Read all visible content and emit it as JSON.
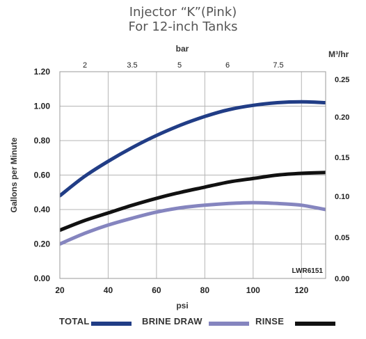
{
  "title_line1": "Injector “K”(Pink)",
  "title_line2": "For 12-inch Tanks",
  "chart_data": {
    "type": "line",
    "xlabel": "psi",
    "ylabel": "Gallons per Minute",
    "top_axis_label": "bar",
    "right_axis_label": "M³/hr",
    "xlim": [
      20,
      130
    ],
    "ylim": [
      0,
      1.2
    ],
    "x_ticks": [
      "20",
      "40",
      "60",
      "80",
      "100",
      "120"
    ],
    "y_ticks": [
      "0.00",
      "0.20",
      "0.40",
      "0.60",
      "0.80",
      "1.00",
      "1.20"
    ],
    "top_ticks": [
      "2",
      "3.5",
      "5",
      "6",
      "7.5"
    ],
    "right_ticks": [
      "0.00",
      "0.05",
      "0.10",
      "0.15",
      "0.20",
      "0.25"
    ],
    "annotation": "LWR6151",
    "grid": true,
    "series": [
      {
        "name": "TOTAL",
        "color": "#213d86",
        "x": [
          20,
          30,
          40,
          50,
          60,
          70,
          80,
          90,
          100,
          110,
          120,
          130
        ],
        "values": [
          0.48,
          0.59,
          0.68,
          0.76,
          0.83,
          0.89,
          0.94,
          0.98,
          1.005,
          1.02,
          1.025,
          1.02
        ]
      },
      {
        "name": "BRINE DRAW",
        "color": "#8585bf",
        "x": [
          20,
          30,
          40,
          50,
          60,
          70,
          80,
          90,
          100,
          110,
          120,
          130
        ],
        "values": [
          0.2,
          0.26,
          0.31,
          0.35,
          0.385,
          0.41,
          0.425,
          0.435,
          0.44,
          0.435,
          0.425,
          0.4
        ]
      },
      {
        "name": "RINSE",
        "color": "#111111",
        "x": [
          20,
          30,
          40,
          50,
          60,
          70,
          80,
          90,
          100,
          110,
          120,
          130
        ],
        "values": [
          0.28,
          0.335,
          0.38,
          0.425,
          0.465,
          0.5,
          0.53,
          0.56,
          0.58,
          0.6,
          0.61,
          0.615
        ]
      }
    ]
  }
}
